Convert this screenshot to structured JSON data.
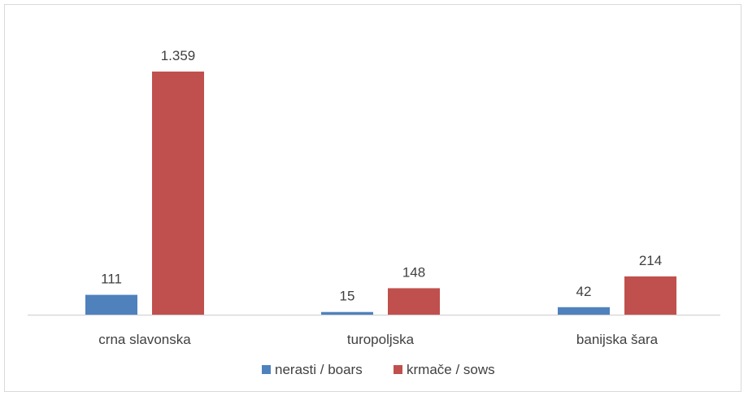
{
  "chart_data": {
    "type": "bar",
    "categories": [
      "crna slavonska",
      "turopoljska",
      "banijska šara"
    ],
    "series": [
      {
        "name": "nerasti / boars",
        "values": [
          111,
          15,
          42
        ],
        "labels": [
          "111",
          "15",
          "42"
        ],
        "color": "#4f81bd"
      },
      {
        "name": "krmače / sows",
        "values": [
          1359,
          148,
          214
        ],
        "labels": [
          "1.359",
          "148",
          "214"
        ],
        "color": "#c0504d"
      }
    ],
    "ylim": [
      0,
      1359
    ],
    "grid": false,
    "legend": "bottom",
    "axis_color": "#d9d9d9",
    "text_color": "#404040"
  }
}
